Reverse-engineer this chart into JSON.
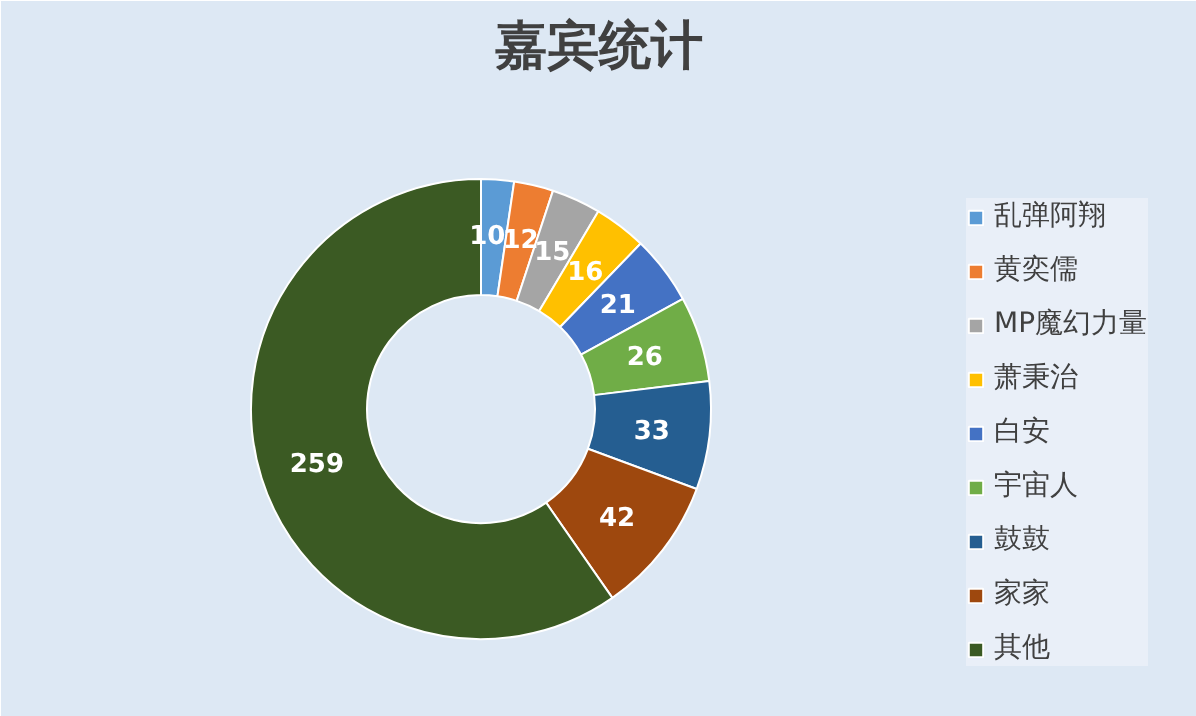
{
  "chart_data": {
    "type": "donut",
    "title": "嘉宾统计",
    "categories": [
      "乱弹阿翔",
      "黄奕儒",
      "MP魔幻力量",
      "萧秉治",
      "白安",
      "宇宙人",
      "鼓鼓",
      "家家",
      "其他"
    ],
    "values": [
      10,
      12,
      15,
      16,
      21,
      26,
      33,
      42,
      259
    ],
    "colors": [
      "#5b9bd5",
      "#ed7d31",
      "#a5a5a5",
      "#ffc000",
      "#4472c4",
      "#70ad47",
      "#255e91",
      "#9e480e",
      "#3b5a23"
    ],
    "data_labels": true,
    "legend": "right"
  }
}
